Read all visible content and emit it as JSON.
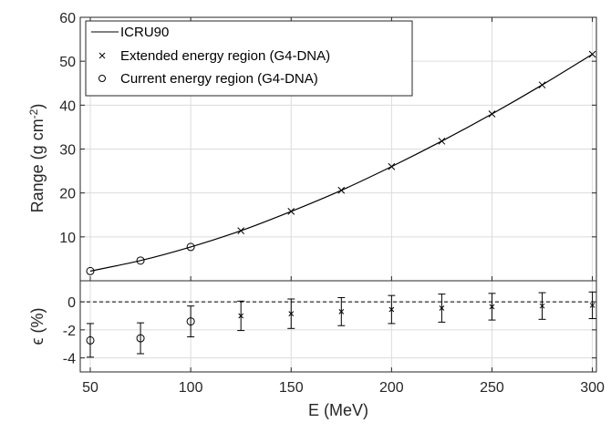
{
  "chart_data": [
    {
      "type": "line",
      "panel": "top",
      "ylabel": "Range (g cm",
      "ylabel_sup": "-2",
      "ylabel_tail": ")",
      "xlim": [
        45,
        302
      ],
      "ylim": [
        0,
        60
      ],
      "yticks": [
        10,
        20,
        30,
        40,
        50,
        60
      ],
      "grid": true,
      "legend_position": "top-left",
      "series": [
        {
          "name": "ICRU90",
          "style": "line",
          "x": [
            50,
            75,
            100,
            125,
            150,
            175,
            200,
            225,
            250,
            275,
            300
          ],
          "y": [
            2.2,
            4.6,
            7.7,
            11.4,
            15.8,
            20.6,
            26.0,
            31.8,
            38.0,
            44.6,
            51.6
          ]
        },
        {
          "name": "Extended energy region (G4-DNA)",
          "style": "x-marker",
          "x": [
            125,
            150,
            175,
            200,
            225,
            250,
            275,
            300
          ],
          "y": [
            11.4,
            15.8,
            20.6,
            26.0,
            31.8,
            38.0,
            44.6,
            51.6
          ]
        },
        {
          "name": "Current energy region (G4-DNA)",
          "style": "o-marker",
          "x": [
            50,
            75,
            100
          ],
          "y": [
            2.2,
            4.6,
            7.7
          ]
        }
      ]
    },
    {
      "type": "scatter",
      "panel": "bottom",
      "xlabel": "E (MeV)",
      "ylabel": "ϵ (%)",
      "xlim": [
        45,
        302
      ],
      "ylim": [
        -5,
        1.5
      ],
      "xticks": [
        50,
        100,
        150,
        200,
        250,
        300
      ],
      "yticks": [
        0,
        -2,
        -4
      ],
      "grid": true,
      "reference_line": 0,
      "series": [
        {
          "style": "o-marker",
          "x": [
            50,
            75,
            100
          ],
          "y": [
            -2.75,
            -2.6,
            -1.4
          ],
          "yerr": [
            1.2,
            1.1,
            1.1
          ]
        },
        {
          "style": "x-marker",
          "x": [
            125,
            150,
            175,
            200,
            225,
            250,
            275,
            300
          ],
          "y": [
            -1.0,
            -0.85,
            -0.7,
            -0.55,
            -0.45,
            -0.35,
            -0.3,
            -0.25
          ],
          "yerr": [
            1.05,
            1.05,
            1.0,
            1.0,
            1.0,
            0.95,
            0.95,
            0.95
          ]
        }
      ]
    }
  ]
}
